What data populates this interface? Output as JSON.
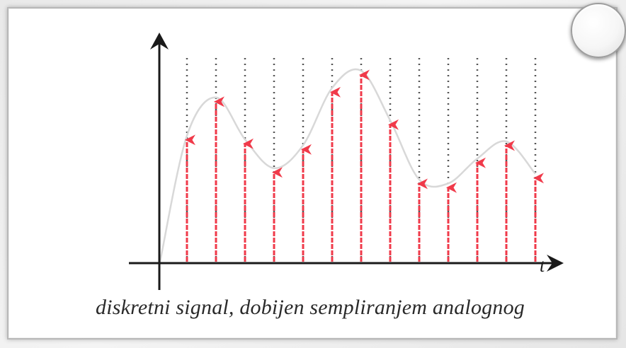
{
  "caption": "diskretni signal, dobijen sempliranjem analognog",
  "axis": {
    "x_label": "t"
  },
  "colors": {
    "sample_arrows": "#f03a4a",
    "analog_curve": "#d8d8d8",
    "grid_lines": "#555555",
    "axes": "#1a1a1a"
  },
  "samples": [
    {
      "index": 1,
      "value": 0.66
    },
    {
      "index": 2,
      "value": 0.86
    },
    {
      "index": 3,
      "value": 0.64
    },
    {
      "index": 4,
      "value": 0.49
    },
    {
      "index": 5,
      "value": 0.61
    },
    {
      "index": 6,
      "value": 0.91
    },
    {
      "index": 7,
      "value": 1.0
    },
    {
      "index": 8,
      "value": 0.74
    },
    {
      "index": 9,
      "value": 0.43
    },
    {
      "index": 10,
      "value": 0.41
    },
    {
      "index": 11,
      "value": 0.54
    },
    {
      "index": 12,
      "value": 0.63
    },
    {
      "index": 13,
      "value": 0.46
    }
  ]
}
